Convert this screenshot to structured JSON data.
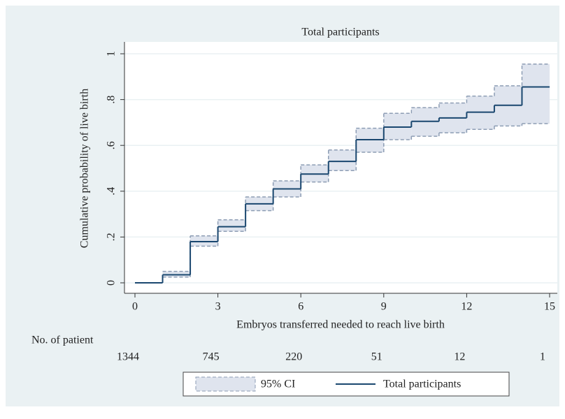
{
  "chart_data": {
    "type": "step",
    "title": "Total participants",
    "x_label": "Embryos transferred needed to reach live birth",
    "y_label": "Cumulative probability of live birth",
    "x": [
      0,
      1,
      2,
      3,
      4,
      5,
      6,
      7,
      8,
      9,
      10,
      11,
      12,
      13,
      14
    ],
    "series": [
      {
        "name": "95% CI",
        "kind": "band",
        "color": "#dfe4ee",
        "edge_color": "#8d9db4",
        "lower": [
          null,
          0.025,
          0.16,
          0.225,
          0.315,
          0.375,
          0.44,
          0.49,
          0.57,
          0.625,
          0.64,
          0.655,
          0.67,
          0.685,
          0.695
        ],
        "upper": [
          null,
          0.05,
          0.205,
          0.275,
          0.375,
          0.445,
          0.515,
          0.58,
          0.675,
          0.74,
          0.765,
          0.785,
          0.815,
          0.86,
          0.955
        ]
      },
      {
        "name": "Total participants",
        "kind": "line",
        "color": "#1a476f",
        "values": [
          0,
          0.035,
          0.18,
          0.245,
          0.345,
          0.41,
          0.475,
          0.53,
          0.625,
          0.68,
          0.705,
          0.72,
          0.745,
          0.775,
          0.855
        ]
      }
    ],
    "xlim": [
      0,
      15
    ],
    "xticks": [
      0,
      3,
      6,
      9,
      12,
      15
    ],
    "ylim": [
      0,
      1
    ],
    "yticks": [
      0,
      {
        "value": 0.2,
        "label": ".2"
      },
      {
        "value": 0.4,
        "label": ".4"
      },
      {
        "value": 0.6,
        "label": ".6"
      },
      {
        "value": 0.8,
        "label": ".8"
      },
      1
    ],
    "grid": true,
    "risk_table": {
      "label": "No. of patient",
      "values": [
        1344,
        745,
        220,
        51,
        12,
        1
      ]
    }
  }
}
